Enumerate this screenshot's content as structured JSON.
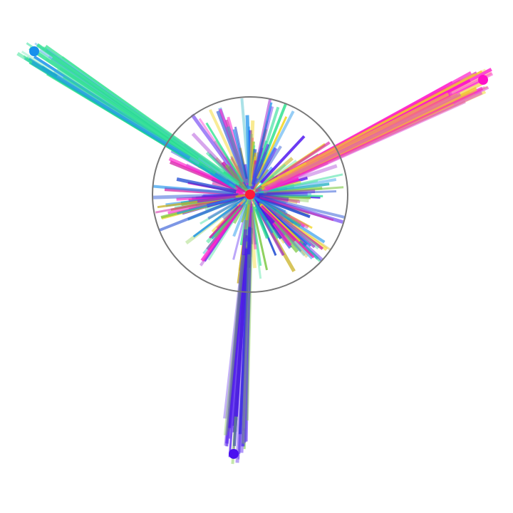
{
  "figure": {
    "background": "#ffffff",
    "ring_color": "#777777",
    "center_color": "#ff1a3a",
    "anchors": [
      {
        "name": "top-left",
        "color": "#1790ec"
      },
      {
        "name": "right",
        "color": "#ff10c8"
      },
      {
        "name": "bottom",
        "color": "#4a10f0"
      }
    ],
    "palette": [
      "#1790ec",
      "#25e08a",
      "#3fe0a0",
      "#ff10c8",
      "#f2d41a",
      "#4a10f0",
      "#1040d0",
      "#9a20d0",
      "#7ac840",
      "#d018a0",
      "#20b0c0",
      "#c8b020"
    ]
  }
}
